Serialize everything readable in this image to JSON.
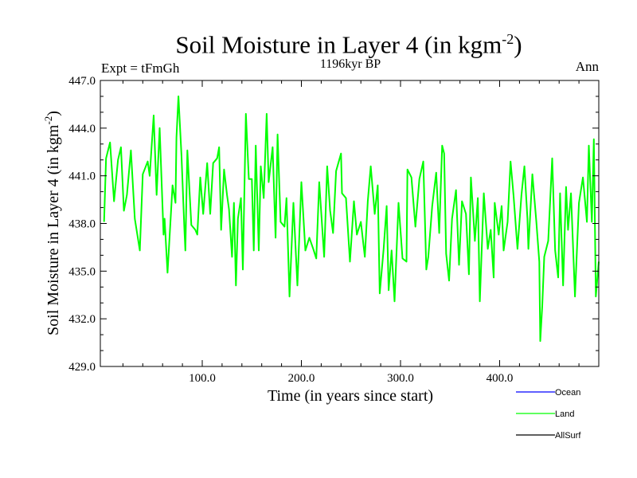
{
  "header": {
    "title": "Soil Moisture in Layer 4 (in kgm",
    "title_sup": "-2",
    "title_close": ")",
    "subtitle": "1196kyr BP",
    "expt": "Expt = tFmGh",
    "season": "Ann"
  },
  "chart_data": {
    "type": "line",
    "title": "Soil Moisture in Layer 4 (in kgm-2)",
    "xlabel": "Time (in years since start)",
    "ylabel": "Soil Moisture in Layer 4 (in kgm-2)",
    "ylabel_main": "Soil Moisture in Layer 4 (in kgm",
    "ylabel_sup": "-2",
    "ylabel_close": ")",
    "xlim": [
      1,
      500
    ],
    "ylim": [
      429,
      447
    ],
    "xticks": [
      100,
      200,
      300,
      400
    ],
    "xtick_labels": [
      "100.0",
      "200.0",
      "300.0",
      "400.0"
    ],
    "yticks": [
      429,
      432,
      435,
      438,
      441,
      444,
      447
    ],
    "ytick_labels": [
      "429.0",
      "432.0",
      "435.0",
      "438.0",
      "441.0",
      "444.0",
      "447.0"
    ],
    "legend_position": "bottom-right",
    "legend": [
      {
        "name": "Ocean",
        "color": "#0000ff"
      },
      {
        "name": "Land",
        "color": "#00ff00"
      },
      {
        "name": "AllSurf",
        "color": "#000000"
      }
    ],
    "series": [
      {
        "name": "Land",
        "color": "#00ff00",
        "x": [
          1,
          3,
          7,
          11,
          15,
          18,
          21,
          24,
          28,
          32,
          37,
          40,
          45,
          47,
          51,
          54,
          57,
          61,
          62,
          65,
          70,
          73,
          74,
          76,
          79,
          82,
          83,
          85,
          89,
          93,
          95,
          98,
          101,
          105,
          108,
          111,
          115,
          117,
          119,
          122,
          125,
          127,
          130,
          132,
          134,
          136,
          139,
          141,
          144,
          147,
          150,
          152,
          154,
          157,
          159,
          162,
          165,
          167,
          171,
          174,
          176,
          179,
          183,
          185,
          188,
          192,
          196,
          200,
          204,
          208,
          212,
          215,
          218,
          223,
          226,
          229,
          232,
          235,
          240,
          241,
          245,
          249,
          253,
          256,
          260,
          264,
          267,
          270,
          274,
          277,
          279,
          283,
          286,
          288,
          291,
          294,
          298,
          302,
          306,
          307,
          311,
          315,
          319,
          323,
          326,
          328,
          332,
          336,
          339,
          342,
          344,
          346,
          349,
          352,
          356,
          359,
          362,
          366,
          369,
          371,
          375,
          378,
          380,
          384,
          388,
          391,
          394,
          395,
          399,
          402,
          404,
          408,
          411,
          414,
          418,
          422,
          425,
          428,
          429,
          433,
          437,
          440,
          441,
          443,
          445,
          449,
          453,
          456,
          459,
          461,
          464,
          467,
          469,
          472,
          476,
          480,
          484,
          488,
          490,
          493,
          495,
          497,
          500
        ],
        "values": [
          438.1,
          442.1,
          443.1,
          439.4,
          442.0,
          442.8,
          438.8,
          439.8,
          442.6,
          438.3,
          436.3,
          441.1,
          441.9,
          441.0,
          444.8,
          439.8,
          444.0,
          437.3,
          438.3,
          434.9,
          440.4,
          439.3,
          443.4,
          446.0,
          442.3,
          437.6,
          436.3,
          442.6,
          437.9,
          437.6,
          437.3,
          440.9,
          438.6,
          441.8,
          438.6,
          441.8,
          442.1,
          442.8,
          437.6,
          441.4,
          439.8,
          438.9,
          435.9,
          439.3,
          434.1,
          438.3,
          439.6,
          435.1,
          444.9,
          440.8,
          440.8,
          436.3,
          442.9,
          436.3,
          441.6,
          439.6,
          444.9,
          440.6,
          442.8,
          437.1,
          443.6,
          438.1,
          437.8,
          439.6,
          433.4,
          439.3,
          434.1,
          440.6,
          436.3,
          437.1,
          436.4,
          435.8,
          440.6,
          435.9,
          441.6,
          438.8,
          437.4,
          441.3,
          442.4,
          439.9,
          439.6,
          435.6,
          439.4,
          437.3,
          438.1,
          435.9,
          439.4,
          441.6,
          438.6,
          440.4,
          433.6,
          436.4,
          439.1,
          433.8,
          436.3,
          433.1,
          439.3,
          435.8,
          435.6,
          441.4,
          440.9,
          437.8,
          440.8,
          441.9,
          435.1,
          435.9,
          439.1,
          441.2,
          437.4,
          442.9,
          442.4,
          436.1,
          434.4,
          438.3,
          440.1,
          435.4,
          439.4,
          438.6,
          434.8,
          440.9,
          436.9,
          439.6,
          433.1,
          439.9,
          436.4,
          437.6,
          434.6,
          439.3,
          437.3,
          439.1,
          436.3,
          438.1,
          441.9,
          439.8,
          436.4,
          439.8,
          441.6,
          438.3,
          436.4,
          441.1,
          438.1,
          435.6,
          430.6,
          432.8,
          435.9,
          436.9,
          442.1,
          436.3,
          434.6,
          439.9,
          434.1,
          440.3,
          437.6,
          439.9,
          433.4,
          439.3,
          440.9,
          438.1,
          442.9,
          438.1,
          443.3,
          433.4,
          435.6
        ]
      }
    ]
  }
}
